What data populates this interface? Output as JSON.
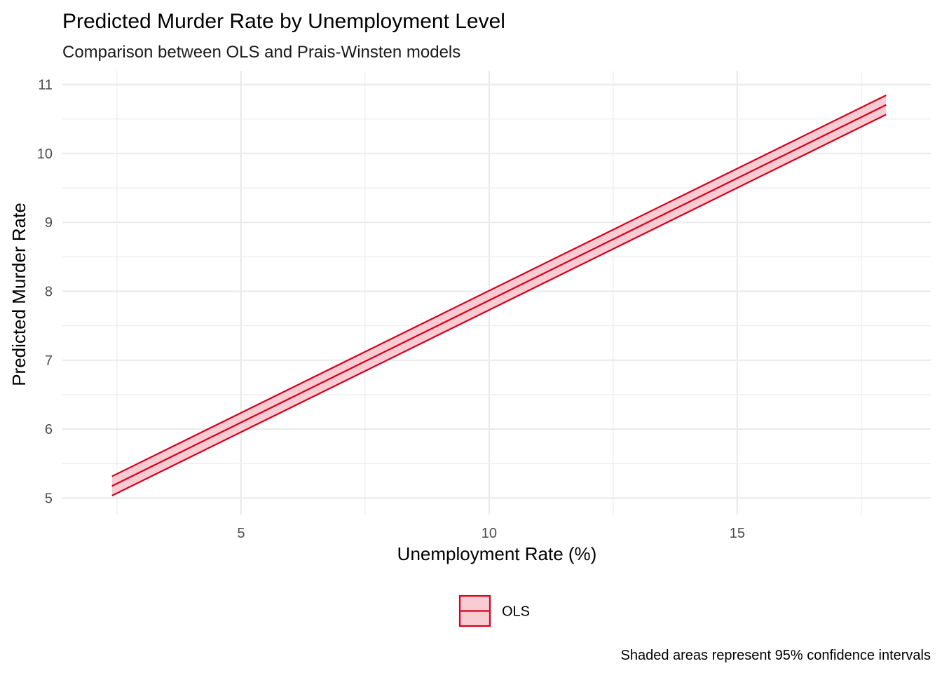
{
  "chart_data": {
    "type": "line",
    "title": "Predicted Murder Rate by Unemployment Level",
    "subtitle": "Comparison between OLS and Prais-Winsten models",
    "xlabel": "Unemployment Rate (%)",
    "ylabel": "Predicted Murder Rate",
    "xlim": [
      1.4,
      18.9
    ],
    "ylim": [
      4.76,
      11.2
    ],
    "x_ticks": [
      5,
      10,
      15
    ],
    "x_tick_labels": [
      "5",
      "10",
      "15"
    ],
    "x_minor_ticks": [
      2.5,
      7.5,
      12.5,
      17.5
    ],
    "y_ticks": [
      5,
      6,
      7,
      8,
      9,
      10,
      11
    ],
    "y_tick_labels": [
      "5",
      "6",
      "7",
      "8",
      "9",
      "10",
      "11"
    ],
    "y_minor_ticks": [
      5.5,
      6.5,
      7.5,
      8.5,
      9.5,
      10.5
    ],
    "grid": true,
    "legend_position": "bottom",
    "caption": "Shaded areas represent 95% confidence intervals",
    "series": [
      {
        "name": "OLS",
        "color": "#d7001b",
        "fill": "#f9ccd3",
        "x": [
          2.4,
          18.0
        ],
        "y": [
          5.175,
          10.705
        ],
        "lower": [
          5.035,
          10.565
        ],
        "upper": [
          5.315,
          10.845
        ]
      }
    ]
  }
}
